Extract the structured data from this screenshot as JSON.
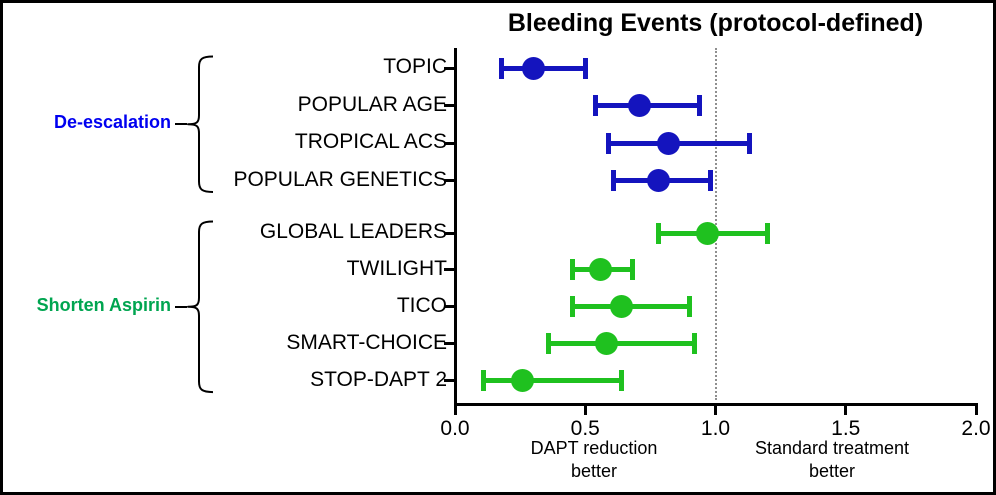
{
  "chart_data": {
    "type": "scatter",
    "subtype": "forest-plot",
    "title": "Bleeding Events (protocol-defined)",
    "x_axis": {
      "min": 0.0,
      "max": 2.0,
      "ticks": [
        "0.0",
        "0.5",
        "1.0",
        "1.5",
        "2.0"
      ],
      "reference_line": 1.0,
      "grid": false
    },
    "axis_annotations": {
      "left": "DAPT reduction\nbetter",
      "right": "Standard treatment\nbetter"
    },
    "groups": [
      {
        "label": "De-escalation",
        "label_color": "#0000F0",
        "marker_color": "#1414BE",
        "studies": [
          {
            "name": "TOPIC",
            "estimate": 0.3,
            "ci_low": 0.18,
            "ci_high": 0.5
          },
          {
            "name": "POPULAR AGE",
            "estimate": 0.71,
            "ci_low": 0.54,
            "ci_high": 0.94
          },
          {
            "name": "TROPICAL ACS",
            "estimate": 0.82,
            "ci_low": 0.59,
            "ci_high": 1.13
          },
          {
            "name": "POPULAR GENETICS",
            "estimate": 0.78,
            "ci_low": 0.61,
            "ci_high": 0.98
          }
        ]
      },
      {
        "label": "Shorten Aspirin",
        "label_color": "#00A550",
        "marker_color": "#1FC11F",
        "studies": [
          {
            "name": "GLOBAL LEADERS",
            "estimate": 0.97,
            "ci_low": 0.78,
            "ci_high": 1.2
          },
          {
            "name": "TWILIGHT",
            "estimate": 0.56,
            "ci_low": 0.45,
            "ci_high": 0.68
          },
          {
            "name": "TICO",
            "estimate": 0.64,
            "ci_low": 0.45,
            "ci_high": 0.9
          },
          {
            "name": "SMART-CHOICE",
            "estimate": 0.58,
            "ci_low": 0.36,
            "ci_high": 0.92
          },
          {
            "name": "STOP-DAPT 2",
            "estimate": 0.26,
            "ci_low": 0.11,
            "ci_high": 0.64
          }
        ]
      }
    ]
  }
}
